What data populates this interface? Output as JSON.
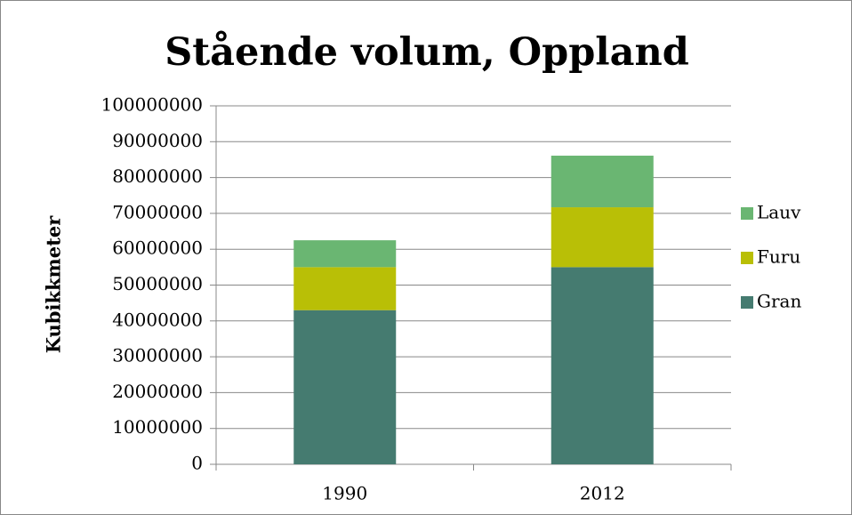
{
  "chart_data": {
    "type": "stacked_bar",
    "title": "Stående volum, Oppland",
    "y_label": "Kubikkmeter",
    "categories": [
      "1990",
      "2012"
    ],
    "series": [
      {
        "name": "Gran",
        "color": "#457b70",
        "values": [
          43000000,
          55000000
        ]
      },
      {
        "name": "Furu",
        "color": "#b9bf06",
        "values": [
          12000000,
          16700000
        ]
      },
      {
        "name": "Lauv",
        "color": "#6ab672",
        "values": [
          7500000,
          14400000
        ]
      }
    ],
    "ylim": [
      0,
      100000000
    ],
    "yticks": [
      0,
      10000000,
      20000000,
      30000000,
      40000000,
      50000000,
      60000000,
      70000000,
      80000000,
      90000000,
      100000000
    ],
    "grid": true,
    "legend": "right"
  }
}
